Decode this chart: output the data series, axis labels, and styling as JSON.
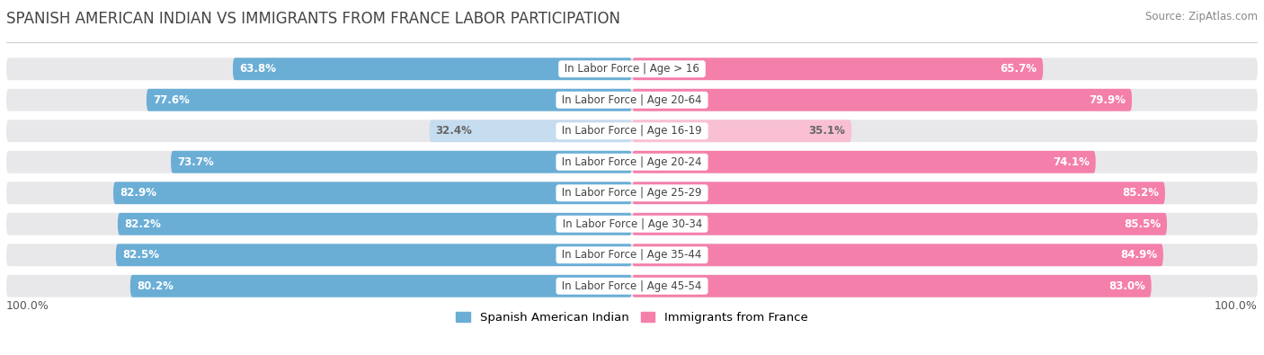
{
  "title": "SPANISH AMERICAN INDIAN VS IMMIGRANTS FROM FRANCE LABOR PARTICIPATION",
  "source": "Source: ZipAtlas.com",
  "categories": [
    "In Labor Force | Age > 16",
    "In Labor Force | Age 20-64",
    "In Labor Force | Age 16-19",
    "In Labor Force | Age 20-24",
    "In Labor Force | Age 25-29",
    "In Labor Force | Age 30-34",
    "In Labor Force | Age 35-44",
    "In Labor Force | Age 45-54"
  ],
  "left_values": [
    63.8,
    77.6,
    32.4,
    73.7,
    82.9,
    82.2,
    82.5,
    80.2
  ],
  "right_values": [
    65.7,
    79.9,
    35.1,
    74.1,
    85.2,
    85.5,
    84.9,
    83.0
  ],
  "left_color": "#6aaed6",
  "left_color_light": "#c6dcef",
  "right_color": "#f47faa",
  "right_color_light": "#f9c0d4",
  "bar_bg_color": "#e8e8eb",
  "bar_height": 0.72,
  "max_value": 100.0,
  "background_color": "#f0f0f2",
  "title_fontsize": 12,
  "label_fontsize": 8.5,
  "value_fontsize": 8.5,
  "legend_label_left": "Spanish American Indian",
  "legend_label_right": "Immigrants from France",
  "axis_label": "100.0%"
}
